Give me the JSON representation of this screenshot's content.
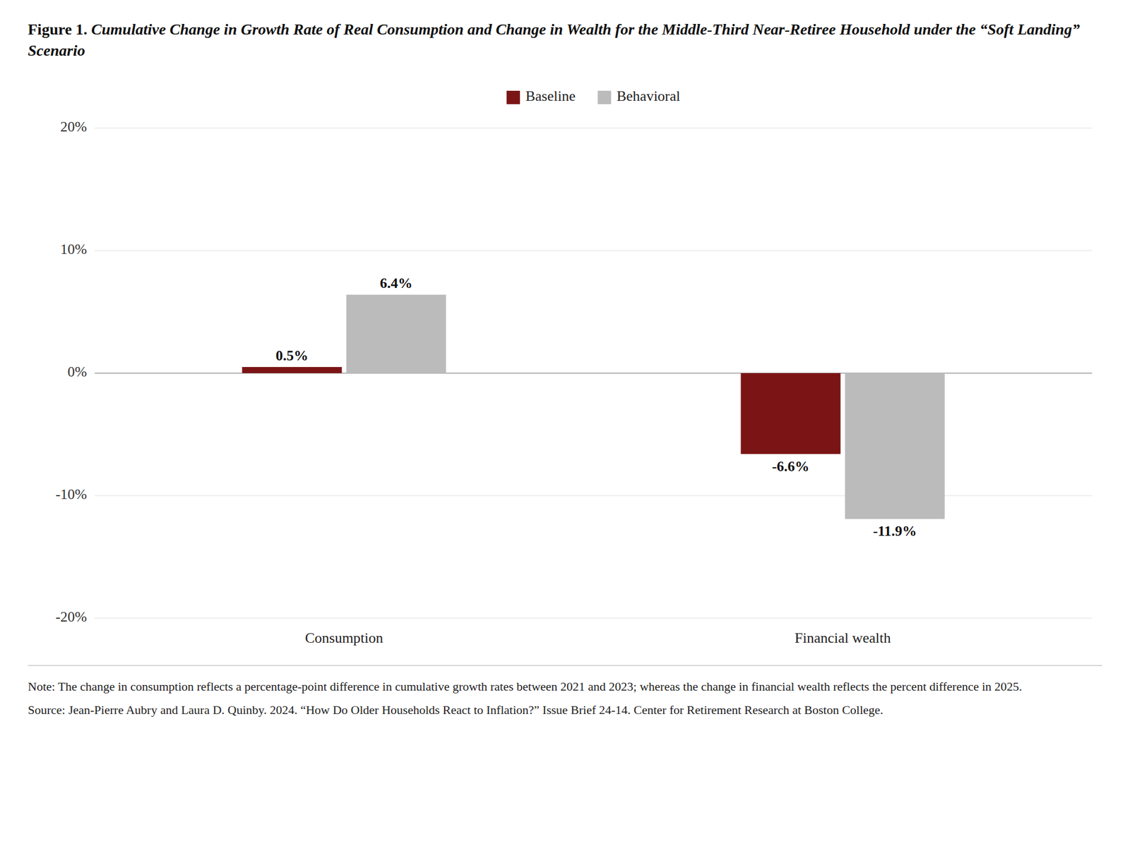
{
  "chart_data": {
    "type": "bar",
    "title": "Figure 1.",
    "subtitle": "Cumulative Change in Growth Rate of Real Consumption and Change in Wealth for the Middle-Third Near-Retiree Household under the “Soft Landing” Scenario",
    "categories": [
      "Consumption",
      "Financial wealth"
    ],
    "series": [
      {
        "name": "Baseline",
        "color": "#7B1515",
        "values": [
          0.5,
          -6.6
        ],
        "value_labels": [
          "0.5%",
          "-6.6%"
        ]
      },
      {
        "name": "Behavioral",
        "color": "#BBBBBB",
        "values": [
          6.4,
          -11.9
        ],
        "value_labels": [
          "6.4%",
          "-11.9%"
        ]
      }
    ],
    "ylim": [
      -20,
      20
    ],
    "yticks": [
      {
        "value": -20,
        "label": "-20%"
      },
      {
        "value": -10,
        "label": "-10%"
      },
      {
        "value": 0,
        "label": "0%"
      },
      {
        "value": 10,
        "label": "10%"
      },
      {
        "value": 20,
        "label": "20%"
      }
    ],
    "grid": true,
    "legend": "top",
    "data_labels": true,
    "annotations": [
      "Note: The change in consumption reflects a percentage-point difference in cumulative growth rates between 2021 and 2023; whereas the change in financial wealth reflects the percent difference in 2025.",
      "Source: Jean-Pierre Aubry and Laura D. Quinby. 2024. “How Do Older Households React to Inflation?” Issue Brief 24-14. Center for Retirement Research at Boston College."
    ]
  }
}
